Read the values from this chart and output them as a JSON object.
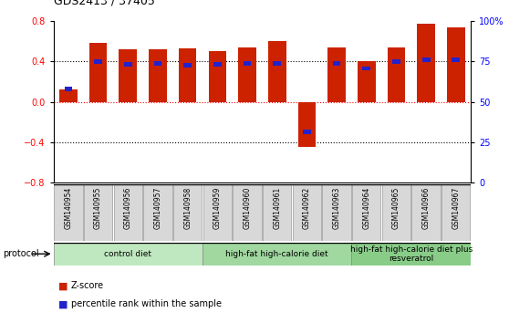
{
  "title": "GDS2413 / 37405",
  "samples": [
    "GSM140954",
    "GSM140955",
    "GSM140956",
    "GSM140957",
    "GSM140958",
    "GSM140959",
    "GSM140960",
    "GSM140961",
    "GSM140962",
    "GSM140963",
    "GSM140964",
    "GSM140965",
    "GSM140966",
    "GSM140967"
  ],
  "z_scores": [
    0.12,
    0.58,
    0.52,
    0.52,
    0.53,
    0.5,
    0.54,
    0.6,
    -0.45,
    0.54,
    0.4,
    0.54,
    0.77,
    0.74
  ],
  "percentile_ranks": [
    0.13,
    0.4,
    0.37,
    0.38,
    0.36,
    0.37,
    0.38,
    0.38,
    -0.3,
    0.38,
    0.33,
    0.4,
    0.42,
    0.42
  ],
  "bar_color": "#cc2200",
  "dot_color": "#2222cc",
  "ylim": [
    -0.8,
    0.8
  ],
  "yticks_left": [
    -0.8,
    -0.4,
    0.0,
    0.4,
    0.8
  ],
  "yticks_right": [
    0,
    25,
    50,
    75,
    100
  ],
  "grid_lines_dotted": [
    -0.4,
    0.4
  ],
  "grid_line_red": 0.0,
  "groups": [
    {
      "label": "control diet",
      "start": 0,
      "end": 5,
      "color": "#c0e8c0"
    },
    {
      "label": "high-fat high-calorie diet",
      "start": 5,
      "end": 10,
      "color": "#a0d8a0"
    },
    {
      "label": "high-fat high-calorie diet plus\nresveratrol",
      "start": 10,
      "end": 14,
      "color": "#88cc88"
    }
  ],
  "protocol_label": "protocol",
  "legend_zscore": "Z-score",
  "legend_percentile": "percentile rank within the sample",
  "bar_width": 0.6
}
